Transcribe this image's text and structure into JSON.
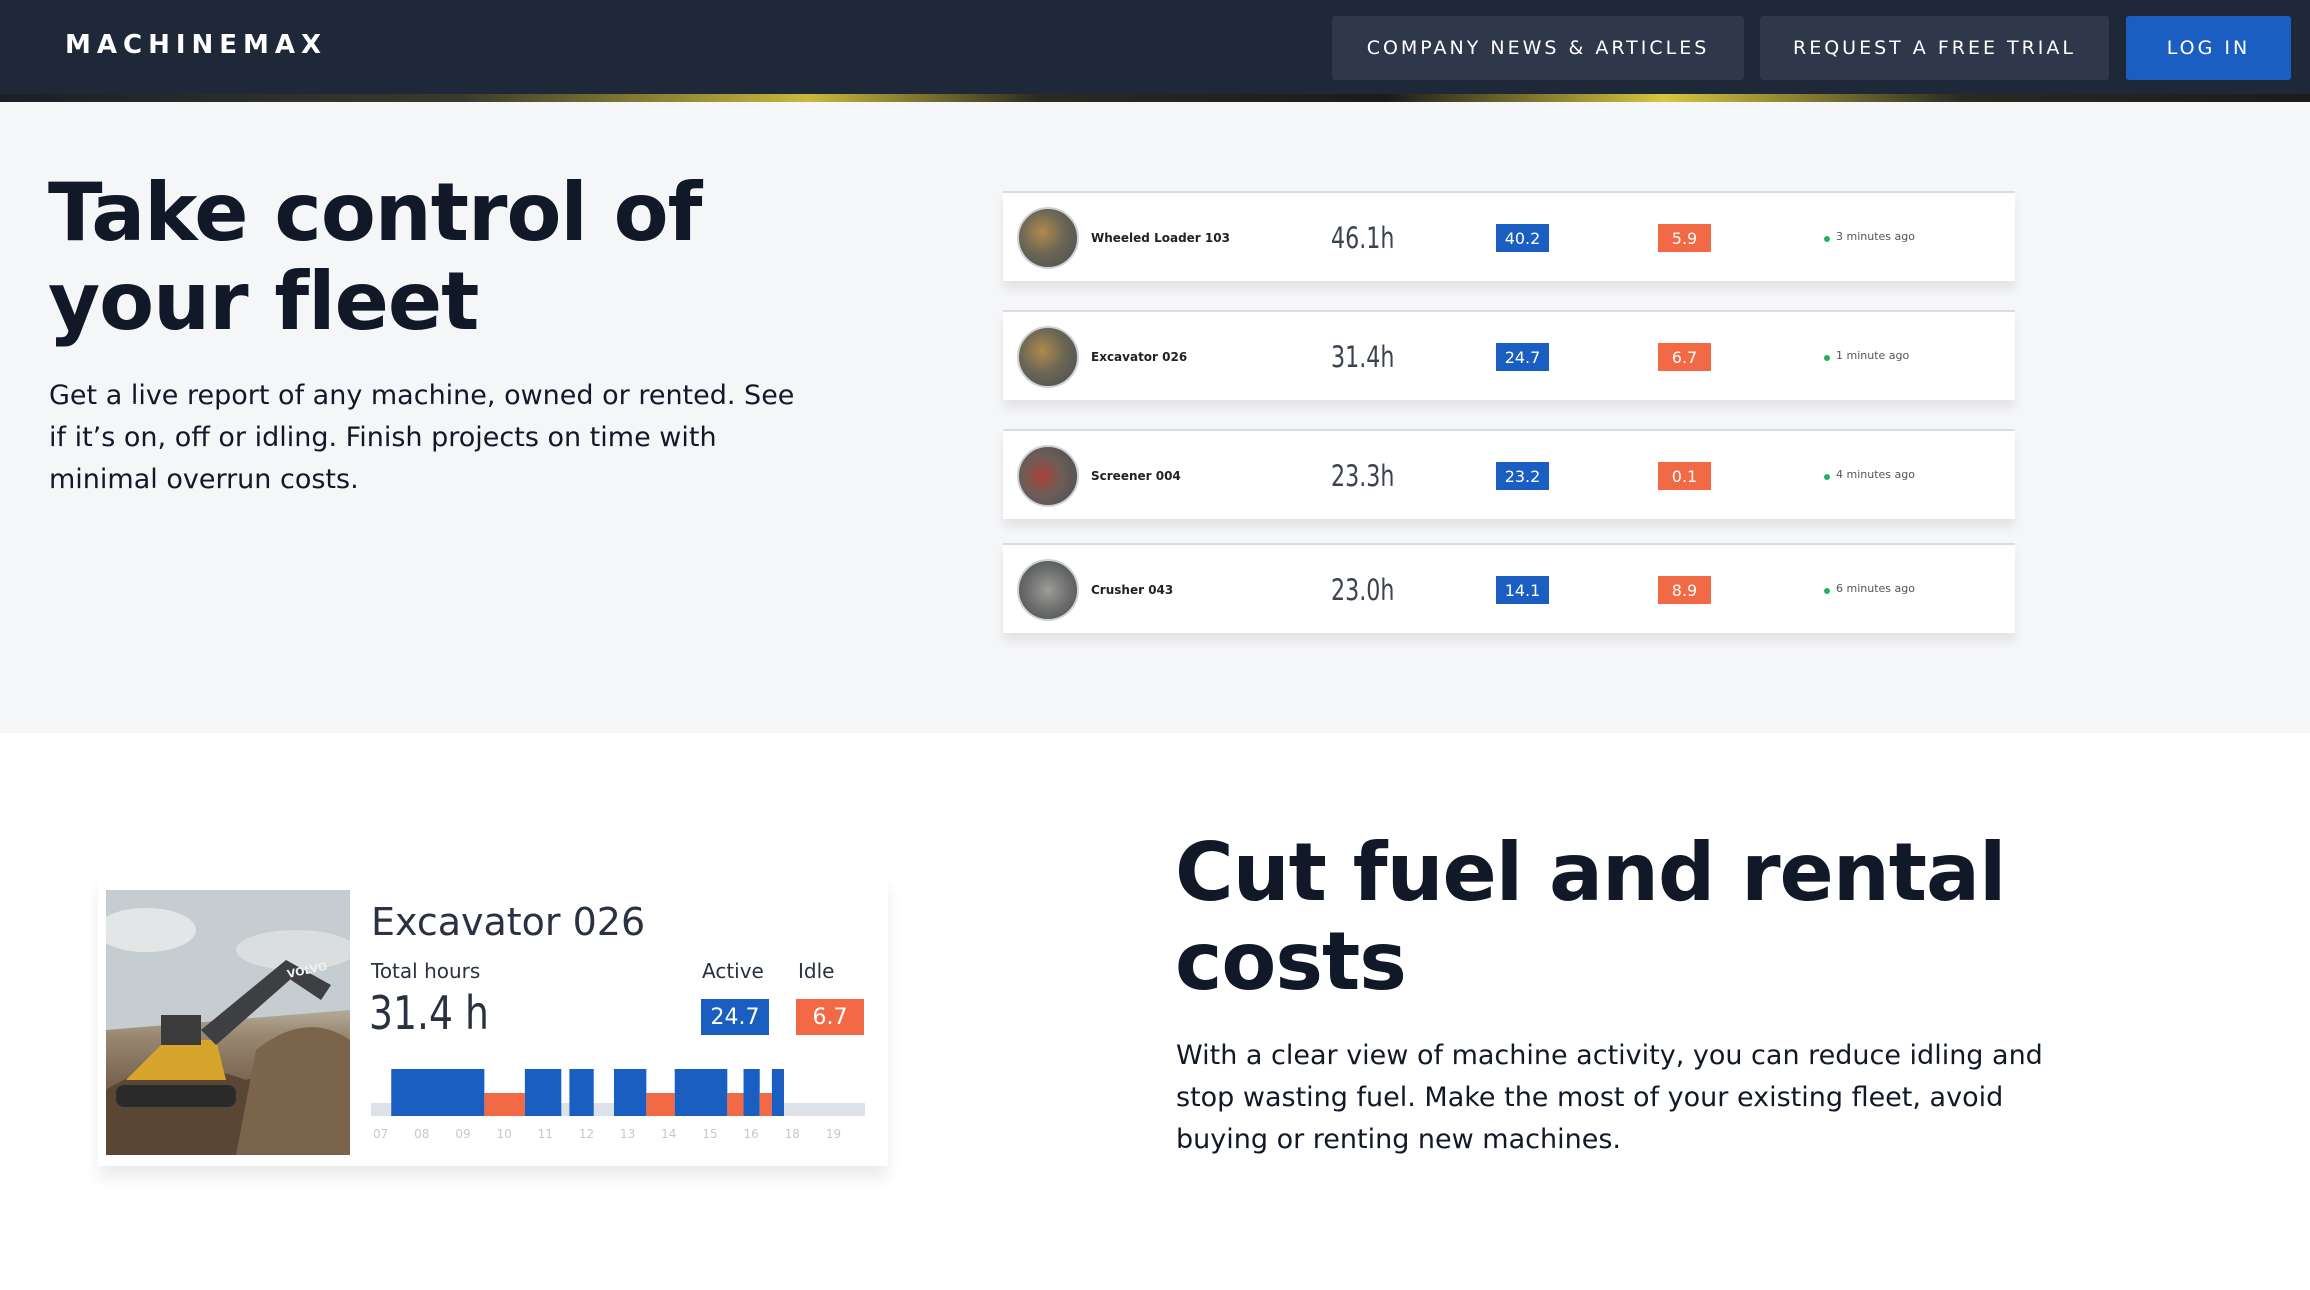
{
  "nav": {
    "logo": "MACHINEMAX",
    "news_label": "COMPANY NEWS & ARTICLES",
    "trial_label": "REQUEST A FREE TRIAL",
    "login_label": "LOG IN"
  },
  "hero": {
    "title": "Take control of your fleet",
    "body": "Get a live report of any machine, owned or rented. See if it’s on, off or idling. Finish projects on time with minimal overrun costs."
  },
  "fleet": {
    "rows": [
      {
        "name": "Wheeled Loader 103",
        "hours": "46.1h",
        "active": "40.2",
        "idle": "5.9",
        "ago": "3 minutes ago"
      },
      {
        "name": "Excavator 026",
        "hours": "31.4h",
        "active": "24.7",
        "idle": "6.7",
        "ago": "1 minute ago"
      },
      {
        "name": "Screener 004",
        "hours": "23.3h",
        "active": "23.2",
        "idle": "0.1",
        "ago": "4 minutes ago"
      },
      {
        "name": "Crusher 043",
        "hours": "23.0h",
        "active": "14.1",
        "idle": "8.9",
        "ago": "6 minutes ago"
      }
    ]
  },
  "card": {
    "title": "Excavator 026",
    "total_label": "Total hours",
    "total_value": "31.4 h",
    "active_label": "Active",
    "idle_label": "Idle",
    "active_value": "24.7",
    "idle_value": "6.7",
    "photo_brand": "VOLVO",
    "timeline": {
      "hours": [
        "07",
        "08",
        "09",
        "10",
        "11",
        "12",
        "13",
        "14",
        "15",
        "16",
        "18",
        "19"
      ],
      "segments": [
        {
          "state": "active",
          "start": 7.5,
          "end": 9.8
        },
        {
          "state": "idle",
          "start": 9.8,
          "end": 10.8
        },
        {
          "state": "active",
          "start": 10.8,
          "end": 11.7
        },
        {
          "state": "active",
          "start": 11.9,
          "end": 12.5
        },
        {
          "state": "active",
          "start": 13.0,
          "end": 13.8
        },
        {
          "state": "idle",
          "start": 13.8,
          "end": 14.5
        },
        {
          "state": "active",
          "start": 14.5,
          "end": 15.8
        },
        {
          "state": "idle",
          "start": 15.8,
          "end": 16.2
        },
        {
          "state": "active",
          "start": 16.2,
          "end": 16.6
        },
        {
          "state": "idle",
          "start": 16.6,
          "end": 16.9
        },
        {
          "state": "active",
          "start": 16.9,
          "end": 17.2
        }
      ]
    }
  },
  "section2": {
    "title": "Cut fuel and rental costs",
    "body": "With a clear view of machine activity, you can reduce idling and stop wasting fuel. Make the most of your existing fleet, avoid buying or renting new machines."
  },
  "colors": {
    "nav_bg": "#1f2839",
    "nav_button": "#2f384a",
    "login_button": "#1a5ec1",
    "active": "#1a5ec1",
    "idle": "#f26a45",
    "status_dot": "#22b35a"
  }
}
